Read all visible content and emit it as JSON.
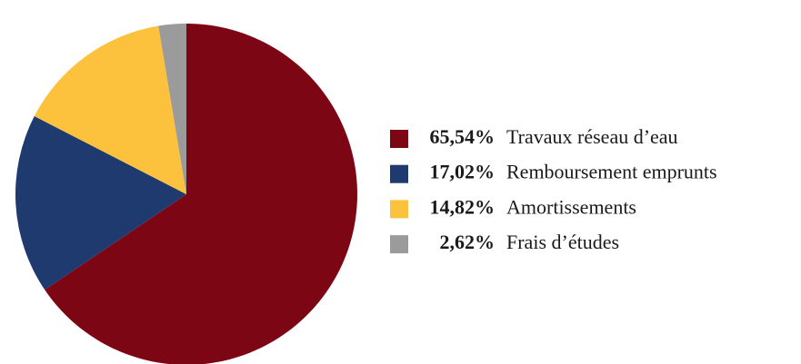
{
  "chart_data": {
    "type": "pie",
    "categories": [
      "Travaux réseau d’eau",
      "Remboursement emprunts",
      "Amortissements",
      "Frais d’études"
    ],
    "values": [
      65.54,
      17.02,
      14.82,
      2.62
    ],
    "value_labels": [
      "65,54%",
      "17,02%",
      "14,82%",
      "2,62%"
    ],
    "colors": [
      "#7d0615",
      "#1f3a6e",
      "#fcc23e",
      "#9b9b9b"
    ],
    "legend": "right"
  }
}
